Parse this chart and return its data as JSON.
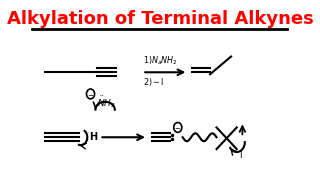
{
  "title": "Alkylation of Terminal Alkynes",
  "title_color": "#FF0000",
  "title_fontsize": 13.0,
  "bg_color": "#FFFFFF",
  "figsize": [
    3.2,
    1.8
  ],
  "dpi": 100,
  "lw": 1.5
}
